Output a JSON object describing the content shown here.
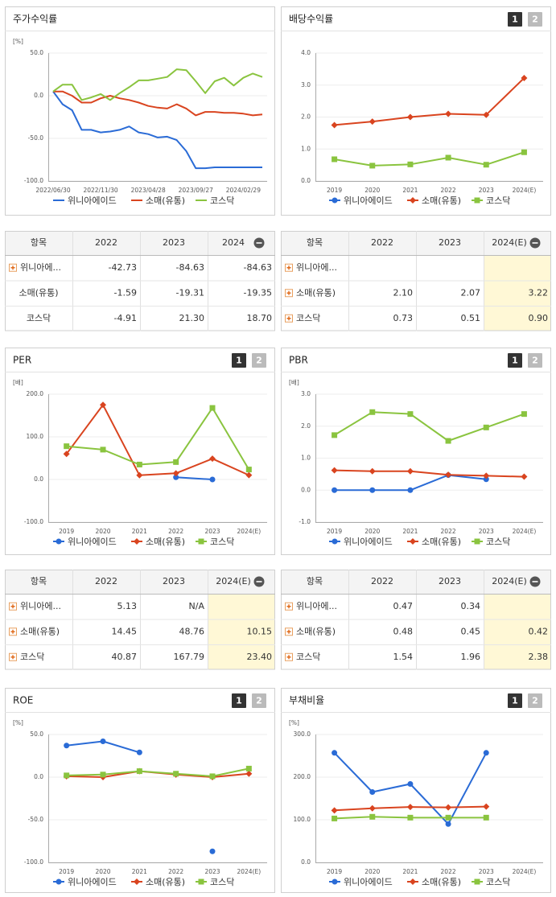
{
  "chart_data": [
    {
      "type": "line",
      "title": "주가수익률",
      "unit_label": "[%]",
      "x_mode": "index",
      "markers": false,
      "grid": true,
      "categories": [
        "2022/06/30",
        null,
        null,
        null,
        null,
        "2022/11/30",
        null,
        null,
        null,
        null,
        "2023/04/28",
        null,
        null,
        null,
        null,
        "2023/09/27",
        null,
        null,
        null,
        null,
        "2024/02/29",
        null,
        null
      ],
      "ylim": [
        -100,
        50
      ],
      "yticks": [
        {
          "value": 50,
          "label": "50.0"
        },
        {
          "value": 0,
          "label": "0.0"
        },
        {
          "value": -50,
          "label": "-50.0"
        },
        {
          "value": -100,
          "label": "-100.0"
        }
      ],
      "series": [
        {
          "name": "위니아에이드",
          "color": "#2a6bd6",
          "marker": "circle",
          "values": [
            5,
            -10,
            -17,
            -40,
            -40,
            -43,
            -42,
            -40,
            -36,
            -43,
            -45,
            -49,
            -48,
            -52,
            -65,
            -85,
            -85,
            -84,
            -84,
            -84,
            -84,
            -84,
            -84
          ]
        },
        {
          "name": "소매(유통)",
          "color": "#d9441f",
          "marker": "diamond",
          "values": [
            5,
            5,
            0,
            -8,
            -8,
            -3,
            0,
            -3,
            -5,
            -8,
            -12,
            -14,
            -15,
            -10,
            -15,
            -23,
            -19,
            -19,
            -20,
            -20,
            -21,
            -23,
            -22
          ]
        },
        {
          "name": "코스닥",
          "color": "#8ac43f",
          "marker": "square",
          "values": [
            5,
            13,
            13,
            -5,
            -2,
            2,
            -5,
            3,
            10,
            18,
            18,
            20,
            22,
            31,
            30,
            17,
            3,
            17,
            21,
            12,
            21,
            26,
            22
          ]
        }
      ]
    },
    {
      "type": "line",
      "title": "배당수익률",
      "unit_label": null,
      "pages": [
        "1",
        "2"
      ],
      "x_mode": "band",
      "markers": true,
      "grid": true,
      "categories": [
        "2019",
        "2020",
        "2021",
        "2022",
        "2023",
        "2024(E)"
      ],
      "ylim": [
        0,
        4
      ],
      "yticks": [
        {
          "value": 0,
          "label": "0.0"
        },
        {
          "value": 1,
          "label": "1.0"
        },
        {
          "value": 2,
          "label": "2.0"
        },
        {
          "value": 3,
          "label": "3.0"
        },
        {
          "value": 4,
          "label": "4.0"
        }
      ],
      "series": [
        {
          "name": "위니아에이드",
          "color": "#2a6bd6",
          "marker": "circle",
          "values": [
            null,
            null,
            null,
            null,
            null,
            null
          ]
        },
        {
          "name": "소매(유통)",
          "color": "#d9441f",
          "marker": "diamond",
          "values": [
            1.75,
            1.86,
            2.0,
            2.1,
            2.07,
            3.22
          ]
        },
        {
          "name": "코스닥",
          "color": "#8ac43f",
          "marker": "square",
          "values": [
            0.68,
            0.48,
            0.52,
            0.73,
            0.51,
            0.9
          ]
        }
      ]
    },
    {
      "type": "line",
      "title": "PER",
      "unit_label": "[배]",
      "pages": [
        "1",
        "2"
      ],
      "x_mode": "band",
      "markers": true,
      "grid": true,
      "categories": [
        "2019",
        "2020",
        "2021",
        "2022",
        "2023",
        "2024(E)"
      ],
      "ylim": [
        -100,
        200
      ],
      "yticks": [
        {
          "value": -100,
          "label": "-100.0"
        },
        {
          "value": 0,
          "label": "0.0"
        },
        {
          "value": 100,
          "label": "100.0"
        },
        {
          "value": 200,
          "label": "200.0"
        }
      ],
      "series": [
        {
          "name": "위니아에이드",
          "color": "#2a6bd6",
          "marker": "circle",
          "values": [
            null,
            null,
            null,
            5.13,
            0,
            null
          ]
        },
        {
          "name": "소매(유통)",
          "color": "#d9441f",
          "marker": "diamond",
          "values": [
            60,
            175,
            10,
            14.45,
            48.76,
            10.15
          ]
        },
        {
          "name": "코스닥",
          "color": "#8ac43f",
          "marker": "square",
          "values": [
            78,
            70,
            35,
            40.87,
            167.79,
            23.4
          ]
        }
      ]
    },
    {
      "type": "line",
      "title": "PBR",
      "unit_label": "[배]",
      "pages": [
        "1",
        "2"
      ],
      "x_mode": "band",
      "markers": true,
      "grid": true,
      "categories": [
        "2019",
        "2020",
        "2021",
        "2022",
        "2023",
        "2024(E)"
      ],
      "ylim": [
        -1,
        3
      ],
      "yticks": [
        {
          "value": -1,
          "label": "-1.0"
        },
        {
          "value": 0,
          "label": "0.0"
        },
        {
          "value": 1,
          "label": "1.0"
        },
        {
          "value": 2,
          "label": "2.0"
        },
        {
          "value": 3,
          "label": "3.0"
        }
      ],
      "series": [
        {
          "name": "위니아에이드",
          "color": "#2a6bd6",
          "marker": "circle",
          "values": [
            0,
            0,
            0,
            0.47,
            0.34,
            null
          ]
        },
        {
          "name": "소매(유통)",
          "color": "#d9441f",
          "marker": "diamond",
          "values": [
            0.62,
            0.59,
            0.59,
            0.48,
            0.45,
            0.42
          ]
        },
        {
          "name": "코스닥",
          "color": "#8ac43f",
          "marker": "square",
          "values": [
            1.72,
            2.44,
            2.38,
            1.54,
            1.96,
            2.38
          ]
        }
      ]
    },
    {
      "type": "line",
      "title": "ROE",
      "unit_label": "[%]",
      "pages": [
        "1",
        "2"
      ],
      "x_mode": "band",
      "markers": true,
      "grid": true,
      "categories": [
        "2019",
        "2020",
        "2021",
        "2022",
        "2023",
        "2024(E)"
      ],
      "ylim": [
        -100,
        50
      ],
      "yticks": [
        {
          "value": 50,
          "label": "50.0"
        },
        {
          "value": 0,
          "label": "0.0"
        },
        {
          "value": -50,
          "label": "-50.0"
        },
        {
          "value": -100,
          "label": "-100.0"
        }
      ],
      "series": [
        {
          "name": "위니아에이드",
          "color": "#2a6bd6",
          "marker": "circle",
          "values": [
            37,
            42,
            29,
            null,
            -87,
            null
          ]
        },
        {
          "name": "소매(유통)",
          "color": "#d9441f",
          "marker": "diamond",
          "values": [
            1,
            0,
            7,
            3,
            0,
            4
          ]
        },
        {
          "name": "코스닥",
          "color": "#8ac43f",
          "marker": "square",
          "values": [
            2,
            3,
            7,
            4,
            1,
            10
          ]
        }
      ]
    },
    {
      "type": "line",
      "title": "부채비율",
      "unit_label": "[%]",
      "pages": [
        "1",
        "2"
      ],
      "x_mode": "band",
      "markers": true,
      "grid": true,
      "categories": [
        "2019",
        "2020",
        "2021",
        "2022",
        "2023",
        "2024(E)"
      ],
      "ylim": [
        0,
        300
      ],
      "yticks": [
        {
          "value": 0,
          "label": "0.0"
        },
        {
          "value": 100,
          "label": "100.0"
        },
        {
          "value": 200,
          "label": "200.0"
        },
        {
          "value": 300,
          "label": "300.0"
        }
      ],
      "series": [
        {
          "name": "위니아에이드",
          "color": "#2a6bd6",
          "marker": "circle",
          "values": [
            257,
            165,
            184,
            90,
            257,
            null
          ]
        },
        {
          "name": "소매(유통)",
          "color": "#d9441f",
          "marker": "diamond",
          "values": [
            122,
            127,
            130,
            129,
            131,
            null
          ]
        },
        {
          "name": "코스닥",
          "color": "#8ac43f",
          "marker": "square",
          "values": [
            103,
            107,
            105,
            105,
            105,
            null
          ]
        }
      ]
    }
  ],
  "tables": [
    {
      "columns": [
        "항목",
        "2022",
        "2023",
        "2024"
      ],
      "highlight_last": false,
      "rows": [
        {
          "label": "위니아에...",
          "expandable": true,
          "cells": [
            "-42.73",
            "-84.63",
            "-84.63"
          ]
        },
        {
          "label": "소매(유통)",
          "expandable": false,
          "cells": [
            "-1.59",
            "-19.31",
            "-19.35"
          ]
        },
        {
          "label": "코스닥",
          "expandable": false,
          "cells": [
            "-4.91",
            "21.30",
            "18.70"
          ]
        }
      ]
    },
    {
      "columns": [
        "항목",
        "2022",
        "2023",
        "2024(E)"
      ],
      "highlight_last": true,
      "rows": [
        {
          "label": "위니아에...",
          "expandable": true,
          "cells": [
            null,
            null,
            null
          ]
        },
        {
          "label": "소매(유통)",
          "expandable": true,
          "cells": [
            "2.10",
            "2.07",
            "3.22"
          ]
        },
        {
          "label": "코스닥",
          "expandable": true,
          "cells": [
            "0.73",
            "0.51",
            "0.90"
          ]
        }
      ]
    },
    {
      "columns": [
        "항목",
        "2022",
        "2023",
        "2024(E)"
      ],
      "highlight_last": true,
      "rows": [
        {
          "label": "위니아에...",
          "expandable": true,
          "cells": [
            "5.13",
            "N/A",
            null
          ]
        },
        {
          "label": "소매(유통)",
          "expandable": true,
          "cells": [
            "14.45",
            "48.76",
            "10.15"
          ]
        },
        {
          "label": "코스닥",
          "expandable": true,
          "cells": [
            "40.87",
            "167.79",
            "23.40"
          ]
        }
      ]
    },
    {
      "columns": [
        "항목",
        "2022",
        "2023",
        "2024(E)"
      ],
      "highlight_last": true,
      "rows": [
        {
          "label": "위니아에...",
          "expandable": true,
          "cells": [
            "0.47",
            "0.34",
            null
          ]
        },
        {
          "label": "소매(유통)",
          "expandable": true,
          "cells": [
            "0.48",
            "0.45",
            "0.42"
          ]
        },
        {
          "label": "코스닥",
          "expandable": true,
          "cells": [
            "1.54",
            "1.96",
            "2.38"
          ]
        }
      ]
    }
  ]
}
